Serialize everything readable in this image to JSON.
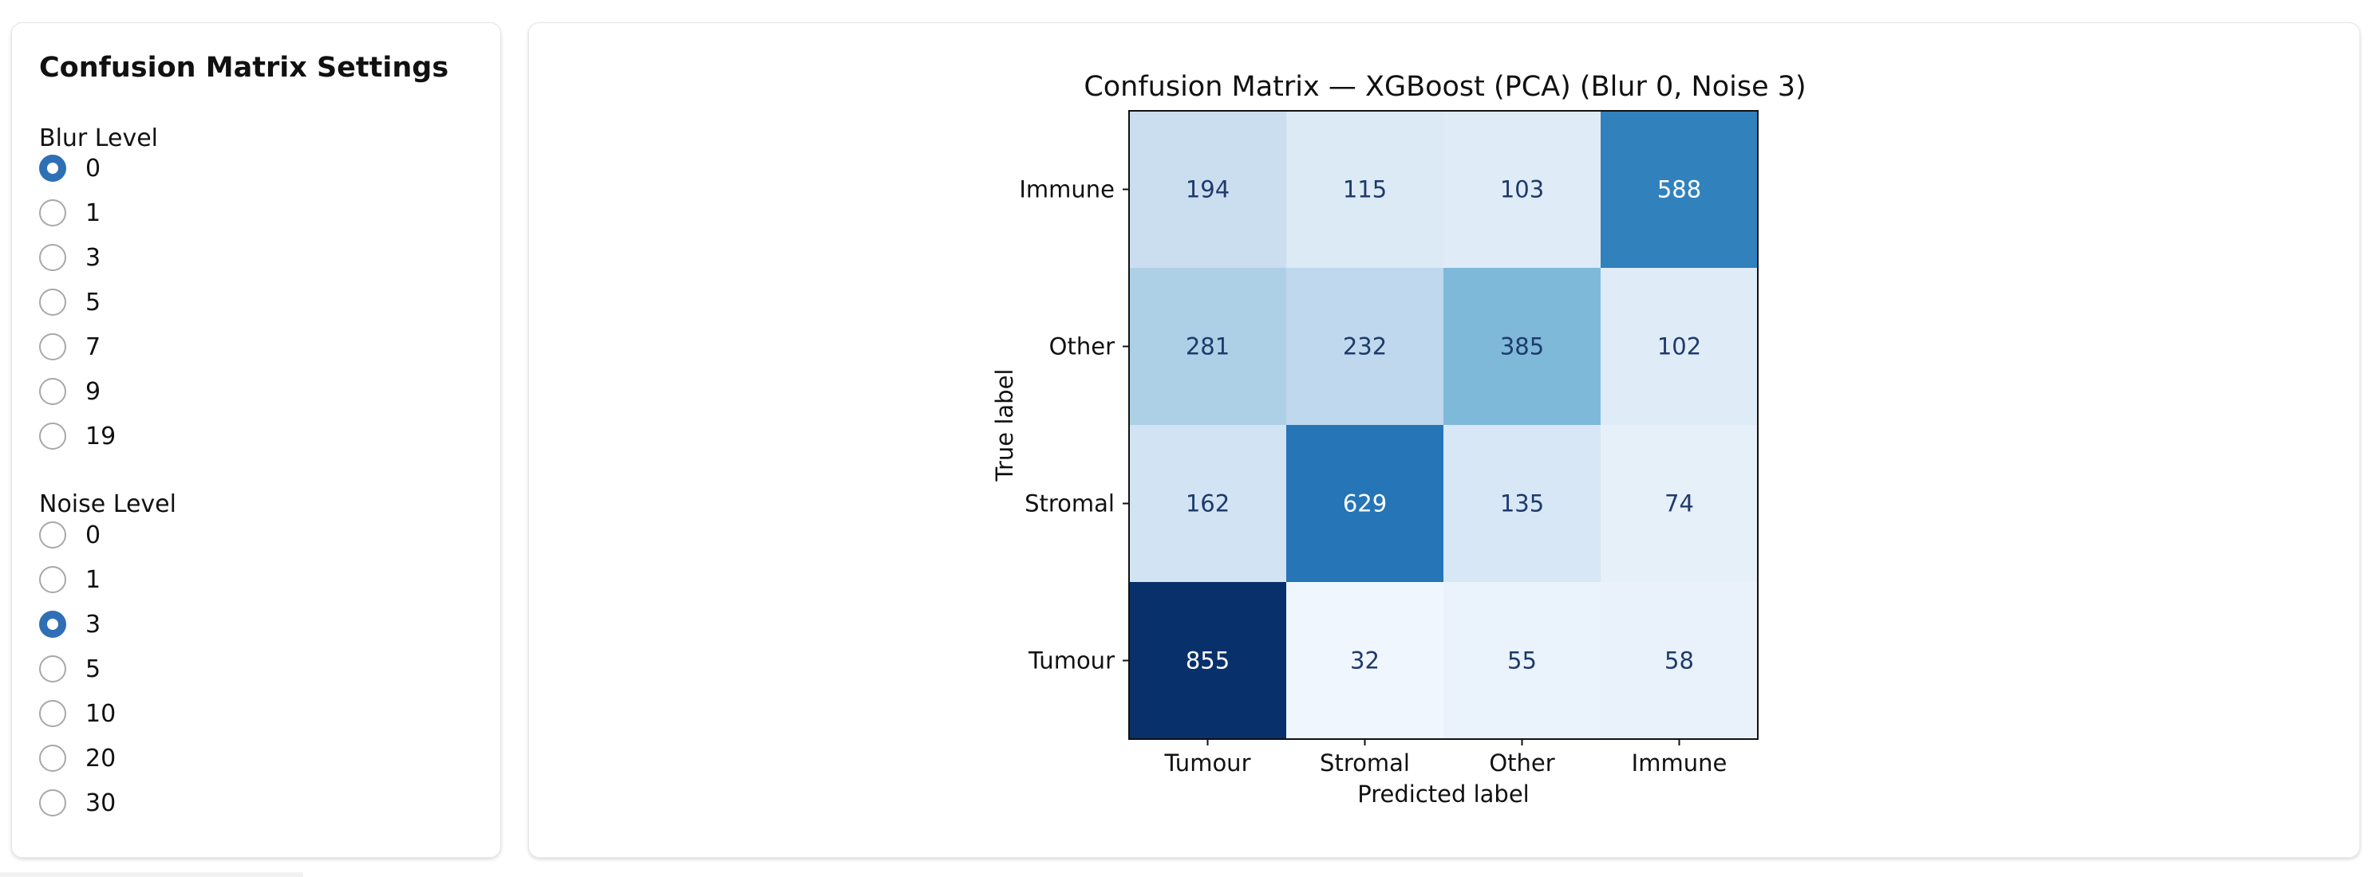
{
  "settings": {
    "title": "Confusion Matrix Settings",
    "blur": {
      "label": "Blur Level",
      "options": [
        "0",
        "1",
        "3",
        "5",
        "7",
        "9",
        "19"
      ],
      "selected": "0"
    },
    "noise": {
      "label": "Noise Level",
      "options": [
        "0",
        "1",
        "3",
        "5",
        "10",
        "20",
        "30"
      ],
      "selected": "3"
    }
  },
  "colors": {
    "accent": "#2f6fb5",
    "colormap": "Blues"
  },
  "chart_data": {
    "type": "heatmap",
    "title": "Confusion Matrix — XGBoost (PCA) (Blur 0, Noise 3)",
    "xlabel": "Predicted label",
    "ylabel": "True label",
    "x_categories": [
      "Tumour",
      "Stromal",
      "Other",
      "Immune"
    ],
    "y_categories": [
      "Immune",
      "Other",
      "Stromal",
      "Tumour"
    ],
    "values": [
      [
        194,
        115,
        103,
        588
      ],
      [
        281,
        232,
        385,
        102
      ],
      [
        162,
        629,
        135,
        74
      ],
      [
        855,
        32,
        55,
        58
      ]
    ],
    "colorbar": false
  }
}
